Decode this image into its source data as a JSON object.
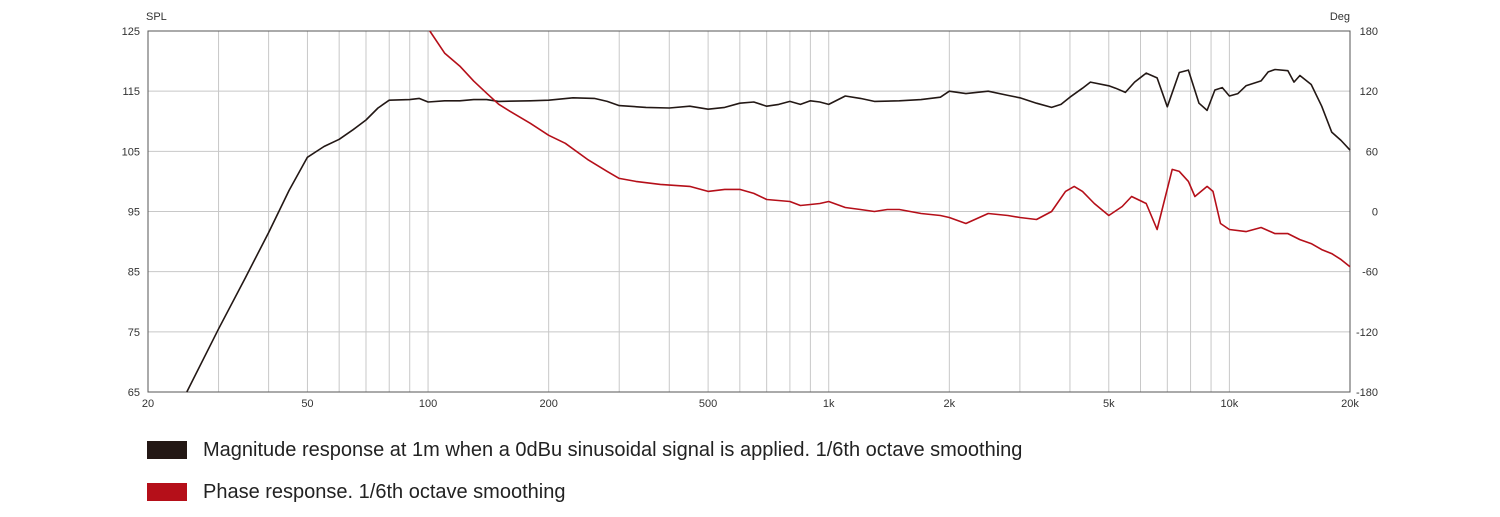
{
  "chart_data": {
    "type": "line",
    "x_scale": "log",
    "xlim": [
      20,
      20000
    ],
    "x_ticks": [
      20,
      50,
      100,
      200,
      500,
      1000,
      2000,
      5000,
      10000,
      20000
    ],
    "x_tick_labels": [
      "20",
      "50",
      "100",
      "200",
      "500",
      "1k",
      "2k",
      "5k",
      "10k",
      "20k"
    ],
    "y_left_label": "SPL",
    "y_left_lim": [
      65,
      125
    ],
    "y_left_ticks": [
      "65",
      "75",
      "85",
      "95",
      "105",
      "115",
      "125"
    ],
    "y_right_label": "Deg",
    "y_right_lim": [
      -180,
      180
    ],
    "y_right_ticks": [
      "-180",
      "-120",
      "-60",
      "0",
      "60",
      "120",
      "180"
    ],
    "grid": true,
    "legend_placement": "bottom",
    "series": [
      {
        "name": "Magnitude response at 1m when a 0dBu sinusoidal signal is applied. 1/6th octave smoothing",
        "axis": "left",
        "color": "#231815",
        "points": [
          [
            25,
            65
          ],
          [
            30,
            75.5
          ],
          [
            35,
            84
          ],
          [
            40,
            91.5
          ],
          [
            45,
            98.5
          ],
          [
            50,
            104
          ],
          [
            55,
            105.8
          ],
          [
            60,
            107
          ],
          [
            65,
            108.6
          ],
          [
            70,
            110.2
          ],
          [
            75,
            112.2
          ],
          [
            80,
            113.5
          ],
          [
            90,
            113.6
          ],
          [
            95,
            113.8
          ],
          [
            100,
            113.2
          ],
          [
            110,
            113.4
          ],
          [
            120,
            113.4
          ],
          [
            130,
            113.6
          ],
          [
            140,
            113.6
          ],
          [
            150,
            113.3
          ],
          [
            180,
            113.4
          ],
          [
            200,
            113.5
          ],
          [
            230,
            113.9
          ],
          [
            260,
            113.8
          ],
          [
            280,
            113.3
          ],
          [
            300,
            112.6
          ],
          [
            350,
            112.3
          ],
          [
            400,
            112.2
          ],
          [
            450,
            112.5
          ],
          [
            500,
            112.0
          ],
          [
            550,
            112.3
          ],
          [
            600,
            113.0
          ],
          [
            650,
            113.2
          ],
          [
            700,
            112.5
          ],
          [
            750,
            112.8
          ],
          [
            800,
            113.3
          ],
          [
            850,
            112.8
          ],
          [
            900,
            113.4
          ],
          [
            950,
            113.2
          ],
          [
            1000,
            112.8
          ],
          [
            1100,
            114.2
          ],
          [
            1200,
            113.8
          ],
          [
            1300,
            113.3
          ],
          [
            1500,
            113.4
          ],
          [
            1700,
            113.6
          ],
          [
            1900,
            114.0
          ],
          [
            2000,
            115.0
          ],
          [
            2200,
            114.6
          ],
          [
            2500,
            115.0
          ],
          [
            2800,
            114.3
          ],
          [
            3000,
            113.9
          ],
          [
            3300,
            113.0
          ],
          [
            3600,
            112.3
          ],
          [
            3800,
            112.8
          ],
          [
            4000,
            114.0
          ],
          [
            4300,
            115.5
          ],
          [
            4500,
            116.5
          ],
          [
            5000,
            115.9
          ],
          [
            5200,
            115.5
          ],
          [
            5500,
            114.8
          ],
          [
            5800,
            116.5
          ],
          [
            6200,
            118.0
          ],
          [
            6600,
            117.2
          ],
          [
            7000,
            112.4
          ],
          [
            7500,
            118.1
          ],
          [
            7900,
            118.5
          ],
          [
            8400,
            113.0
          ],
          [
            8800,
            111.8
          ],
          [
            9200,
            115.2
          ],
          [
            9600,
            115.6
          ],
          [
            10000,
            114.2
          ],
          [
            10500,
            114.6
          ],
          [
            11000,
            115.9
          ],
          [
            12000,
            116.7
          ],
          [
            12500,
            118.2
          ],
          [
            13000,
            118.6
          ],
          [
            14000,
            118.4
          ],
          [
            14500,
            116.5
          ],
          [
            15000,
            117.6
          ],
          [
            16000,
            116.1
          ],
          [
            17000,
            112.5
          ],
          [
            18000,
            108.2
          ],
          [
            19000,
            106.8
          ],
          [
            20000,
            105.2
          ]
        ]
      },
      {
        "name": "Phase response. 1/6th octave smoothing",
        "axis": "right",
        "color": "#b50f19",
        "points": [
          [
            101,
            180
          ],
          [
            110,
            158
          ],
          [
            120,
            145
          ],
          [
            130,
            130
          ],
          [
            140,
            118
          ],
          [
            150,
            107
          ],
          [
            160,
            100
          ],
          [
            180,
            88
          ],
          [
            200,
            76
          ],
          [
            220,
            68
          ],
          [
            250,
            52
          ],
          [
            280,
            40
          ],
          [
            300,
            33
          ],
          [
            330,
            30
          ],
          [
            380,
            27
          ],
          [
            450,
            25
          ],
          [
            500,
            20
          ],
          [
            550,
            22
          ],
          [
            600,
            22
          ],
          [
            650,
            18
          ],
          [
            700,
            12
          ],
          [
            800,
            10
          ],
          [
            850,
            6
          ],
          [
            900,
            7
          ],
          [
            950,
            8
          ],
          [
            1000,
            10
          ],
          [
            1100,
            4
          ],
          [
            1200,
            2
          ],
          [
            1300,
            0
          ],
          [
            1400,
            2
          ],
          [
            1500,
            2
          ],
          [
            1700,
            -2
          ],
          [
            1900,
            -4
          ],
          [
            2000,
            -6
          ],
          [
            2200,
            -12
          ],
          [
            2500,
            -2
          ],
          [
            2800,
            -4
          ],
          [
            3000,
            -6
          ],
          [
            3300,
            -8
          ],
          [
            3600,
            0
          ],
          [
            3900,
            20
          ],
          [
            4100,
            25
          ],
          [
            4300,
            20
          ],
          [
            4600,
            8
          ],
          [
            5000,
            -4
          ],
          [
            5400,
            5
          ],
          [
            5700,
            15
          ],
          [
            6200,
            8
          ],
          [
            6600,
            -18
          ],
          [
            7200,
            42
          ],
          [
            7500,
            40
          ],
          [
            7900,
            30
          ],
          [
            8200,
            15
          ],
          [
            8800,
            25
          ],
          [
            9100,
            20
          ],
          [
            9500,
            -12
          ],
          [
            10000,
            -18
          ],
          [
            11000,
            -20
          ],
          [
            12000,
            -16
          ],
          [
            13000,
            -22
          ],
          [
            14000,
            -22
          ],
          [
            15000,
            -28
          ],
          [
            16000,
            -32
          ],
          [
            17000,
            -38
          ],
          [
            18000,
            -42
          ],
          [
            19000,
            -48
          ],
          [
            20000,
            -55
          ]
        ]
      }
    ]
  }
}
